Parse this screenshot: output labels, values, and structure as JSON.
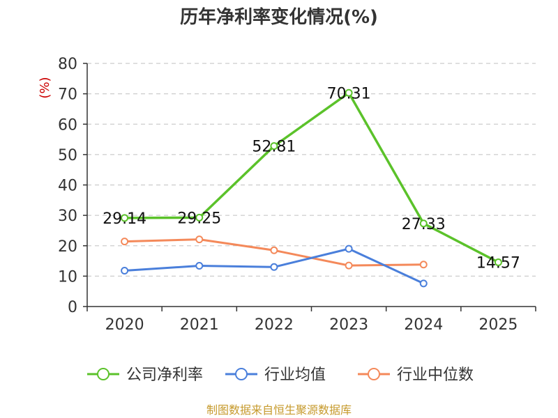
{
  "chart_data": {
    "type": "line",
    "title": "历年净利率变化情况(%)",
    "ylabel": "(%)",
    "xlabel": "",
    "categories": [
      "2020",
      "2021",
      "2022",
      "2023",
      "2024",
      "2025"
    ],
    "ylim": [
      0,
      80
    ],
    "yticks": [
      0,
      10,
      20,
      30,
      40,
      50,
      60,
      70,
      80
    ],
    "grid": true,
    "legend_position": "bottom",
    "series": [
      {
        "name": "公司净利率",
        "color": "#5bc22a",
        "values": [
          29.14,
          29.25,
          52.81,
          70.31,
          27.33,
          14.57
        ],
        "labels": [
          "29.14",
          "29.25",
          "52.81",
          "70.31",
          "27.33",
          "14.57"
        ]
      },
      {
        "name": "行业均值",
        "color": "#4a7fdb",
        "values": [
          11.8,
          13.4,
          13.0,
          19.0,
          7.6,
          null
        ]
      },
      {
        "name": "行业中位数",
        "color": "#f4895a",
        "values": [
          21.4,
          22.1,
          18.5,
          13.5,
          13.8,
          null
        ]
      }
    ]
  },
  "source": "制图数据来自恒生聚源数据库"
}
